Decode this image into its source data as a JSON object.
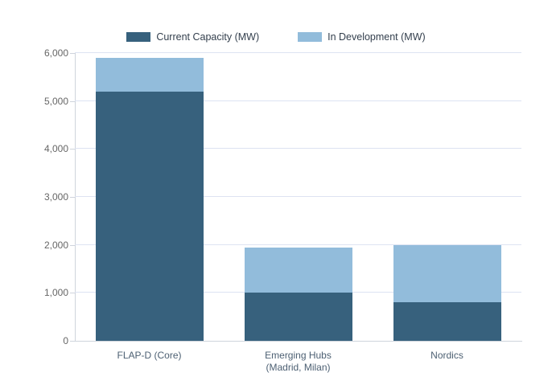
{
  "legend": {
    "items": [
      {
        "label": "Current Capacity (MW)",
        "color": "#37617d"
      },
      {
        "label": "In Development (MW)",
        "color": "#92bcdb"
      }
    ]
  },
  "chart_data": {
    "type": "bar",
    "stacked": true,
    "title": "",
    "xlabel": "",
    "ylabel": "",
    "categories": [
      "FLAP-D (Core)",
      "Emerging Hubs (Madrid, Milan)",
      "Nordics"
    ],
    "category_label_lines": [
      [
        "FLAP-D (Core)"
      ],
      [
        "Emerging Hubs",
        "(Madrid, Milan)"
      ],
      [
        "Nordics"
      ]
    ],
    "series": [
      {
        "name": "Current Capacity (MW)",
        "color": "#37617d",
        "values": [
          5200,
          1000,
          800
        ]
      },
      {
        "name": "In Development (MW)",
        "color": "#92bcdb",
        "values": [
          700,
          950,
          1200
        ]
      }
    ],
    "stack_totals": [
      5900,
      1950,
      2000
    ],
    "ylim": [
      0,
      6000
    ],
    "ytick_interval": 1000,
    "ytick_labels": [
      "0",
      "1,000",
      "2,000",
      "3,000",
      "4,000",
      "5,000",
      "6,000"
    ],
    "grid": true,
    "legend_position": "top"
  },
  "colors": {
    "background": "#ffffff",
    "grid_line": "#dde3f2",
    "axis_line": "#cfd4dc",
    "y_tick_label": "#666666",
    "x_tick_label": "#4d6073",
    "legend_text": "#333f4d"
  }
}
